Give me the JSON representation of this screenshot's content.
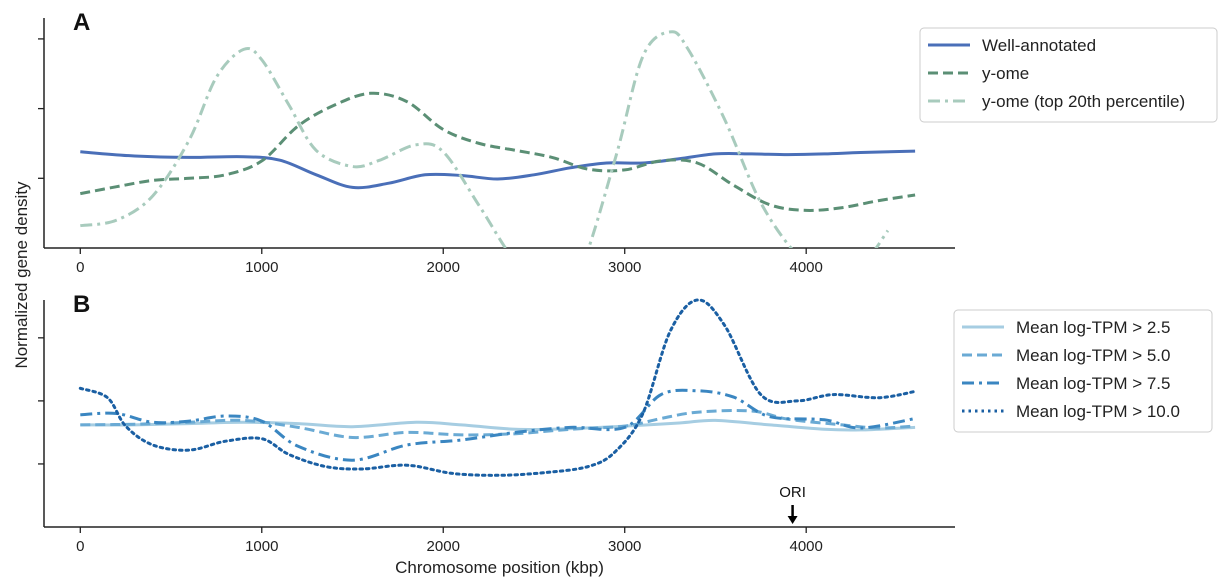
{
  "figure": {
    "shared_ylabel": "Normalized gene density"
  },
  "chart_data": [
    {
      "type": "line",
      "panel_label": "A",
      "xlabel": "",
      "ylabel": "",
      "xlim": [
        -200,
        4820
      ],
      "ylim": [
        0,
        3.3
      ],
      "x_ticks": [
        0,
        1000,
        2000,
        3000,
        4000
      ],
      "y_ticks": [
        1,
        2,
        3
      ],
      "y_tick_labels_shown": false,
      "grid": false,
      "legend_position": "right-top",
      "series": [
        {
          "name": "Well-annotated",
          "color": "#4a6fb8",
          "dash": "solid",
          "x": [
            0,
            300,
            600,
            900,
            1100,
            1300,
            1500,
            1700,
            1900,
            2100,
            2300,
            2500,
            2700,
            2900,
            3100,
            3300,
            3500,
            3700,
            3900,
            4100,
            4300,
            4600
          ],
          "y": [
            1.38,
            1.32,
            1.3,
            1.31,
            1.26,
            1.05,
            0.87,
            0.93,
            1.05,
            1.04,
            0.99,
            1.05,
            1.15,
            1.22,
            1.22,
            1.28,
            1.35,
            1.35,
            1.34,
            1.35,
            1.37,
            1.39
          ]
        },
        {
          "name": "y-ome",
          "color": "#5b8f75",
          "dash": "dashed",
          "x": [
            0,
            200,
            400,
            600,
            800,
            1000,
            1200,
            1400,
            1600,
            1800,
            2000,
            2200,
            2400,
            2600,
            2800,
            3000,
            3200,
            3400,
            3600,
            3800,
            4000,
            4200,
            4400,
            4600
          ],
          "y": [
            0.78,
            0.88,
            0.97,
            1.0,
            1.05,
            1.25,
            1.75,
            2.05,
            2.22,
            2.1,
            1.7,
            1.5,
            1.4,
            1.3,
            1.13,
            1.12,
            1.25,
            1.22,
            0.9,
            0.62,
            0.54,
            0.58,
            0.68,
            0.76
          ]
        },
        {
          "name": "y-ome (top 20th percentile)",
          "color": "#a8cbbd",
          "dash": "dashdot",
          "x": [
            0,
            200,
            400,
            600,
            750,
            900,
            1000,
            1150,
            1300,
            1500,
            1650,
            1850,
            2000,
            2200,
            2400,
            2600,
            2750,
            2950,
            3100,
            3250,
            3350,
            3550,
            3750,
            3950,
            4100,
            4300,
            4450
          ],
          "y": [
            0.32,
            0.4,
            0.75,
            1.55,
            2.45,
            2.85,
            2.7,
            2.05,
            1.4,
            1.17,
            1.26,
            1.48,
            1.38,
            0.6,
            -0.2,
            -0.6,
            -0.35,
            1.3,
            2.75,
            3.1,
            2.85,
            1.85,
            0.65,
            -0.1,
            -0.35,
            -0.25,
            0.25
          ]
        }
      ]
    },
    {
      "type": "line",
      "panel_label": "B",
      "xlabel": "Chromosome position (kbp)",
      "ylabel": "",
      "xlim": [
        -200,
        4820
      ],
      "ylim": [
        0,
        3.6
      ],
      "x_ticks": [
        0,
        1000,
        2000,
        3000,
        4000
      ],
      "y_ticks": [
        1,
        2,
        3
      ],
      "y_tick_labels_shown": false,
      "grid": false,
      "legend_position": "right-top",
      "annotation": {
        "text": "ORI",
        "x": 3925
      },
      "series": [
        {
          "name": "Mean log-TPM > 2.5",
          "color": "#a6cde2",
          "dash": "solid",
          "x": [
            0,
            300,
            600,
            900,
            1200,
            1500,
            1850,
            2100,
            2400,
            2700,
            3000,
            3300,
            3500,
            3800,
            4100,
            4300,
            4600
          ],
          "y": [
            1.62,
            1.62,
            1.64,
            1.66,
            1.64,
            1.59,
            1.66,
            1.62,
            1.55,
            1.56,
            1.6,
            1.65,
            1.69,
            1.62,
            1.55,
            1.54,
            1.58
          ]
        },
        {
          "name": "Mean log-TPM > 5.0",
          "color": "#6aaad4",
          "dash": "dashed",
          "x": [
            0,
            300,
            600,
            900,
            1200,
            1500,
            1800,
            2100,
            2400,
            2700,
            3000,
            3200,
            3400,
            3700,
            3900,
            4200,
            4400,
            4600
          ],
          "y": [
            1.62,
            1.63,
            1.66,
            1.69,
            1.58,
            1.42,
            1.5,
            1.46,
            1.48,
            1.55,
            1.6,
            1.72,
            1.82,
            1.84,
            1.71,
            1.62,
            1.57,
            1.6
          ]
        },
        {
          "name": "Mean log-TPM > 7.5",
          "color": "#3a86c1",
          "dash": "dashdot",
          "x": [
            0,
            200,
            400,
            600,
            800,
            1000,
            1200,
            1500,
            1800,
            2100,
            2400,
            2700,
            3000,
            3200,
            3400,
            3600,
            3800,
            4100,
            4300,
            4600
          ],
          "y": [
            1.78,
            1.8,
            1.66,
            1.68,
            1.76,
            1.68,
            1.28,
            1.06,
            1.3,
            1.38,
            1.5,
            1.58,
            1.58,
            2.1,
            2.16,
            2.06,
            1.75,
            1.7,
            1.57,
            1.72
          ]
        },
        {
          "name": "Mean log-TPM > 10.0",
          "color": "#1a5fa3",
          "dash": "dotted",
          "x": [
            0,
            150,
            250,
            400,
            600,
            800,
            1000,
            1150,
            1350,
            1550,
            1800,
            2050,
            2300,
            2550,
            2800,
            2950,
            3100,
            3250,
            3400,
            3550,
            3750,
            3950,
            4150,
            4400,
            4600
          ],
          "y": [
            2.2,
            2.05,
            1.6,
            1.3,
            1.22,
            1.36,
            1.4,
            1.15,
            0.96,
            0.92,
            0.98,
            0.85,
            0.82,
            0.86,
            0.96,
            1.2,
            1.8,
            3.1,
            3.6,
            3.2,
            2.1,
            2.0,
            2.1,
            2.05,
            2.15
          ]
        }
      ]
    }
  ]
}
